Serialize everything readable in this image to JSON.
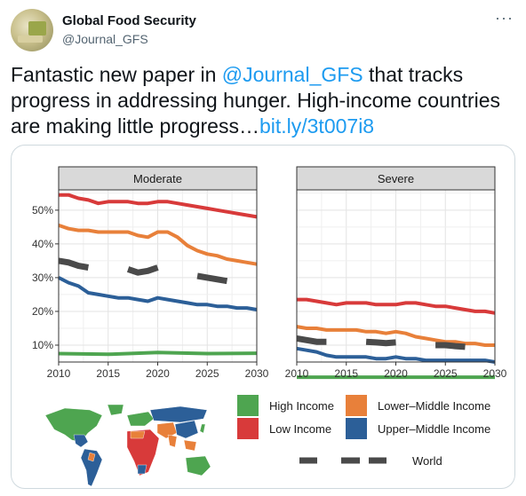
{
  "account": {
    "name": "Global Food Security",
    "handle": "@Journal_GFS",
    "more_icon": "more-dots-icon"
  },
  "tweet": {
    "text_before": "Fantastic new paper in ",
    "mention": "@Journal_GFS",
    "text_after": " that tracks progress in addressing hunger. High-income countries are making little progress…",
    "link": "bit.ly/3t007i8"
  },
  "chart_data": {
    "type": "line",
    "panels": [
      "Moderate",
      "Severe"
    ],
    "x_ticks": [
      "2010",
      "2015",
      "2020",
      "2025",
      "2030"
    ],
    "xlim": [
      2010,
      2030
    ],
    "y_ticks": [
      "10%",
      "20%",
      "30%",
      "40%",
      "50%"
    ],
    "ylim": [
      5,
      56
    ],
    "grid": true,
    "legend": {
      "placement": "bottom-right",
      "entries": [
        "High Income",
        "Lower–Middle Income",
        "Low Income",
        "Upper–Middle Income",
        "World"
      ]
    },
    "colors": {
      "High Income": "#4ea550",
      "Lower–Middle Income": "#e8803a",
      "Low Income": "#d83a3a",
      "Upper–Middle Income": "#2c5f98",
      "World": "#4a4a4a"
    },
    "series": {
      "Moderate": [
        {
          "name": "Low Income",
          "x": [
            2010,
            2011,
            2012,
            2013,
            2014,
            2015,
            2016,
            2017,
            2018,
            2019,
            2020,
            2021,
            2022,
            2023,
            2024,
            2025,
            2026,
            2027,
            2028,
            2029,
            2030
          ],
          "values": [
            54.5,
            54.5,
            53.5,
            53,
            52,
            52.5,
            52.5,
            52.5,
            52,
            52,
            52.5,
            52.5,
            52,
            51.5,
            51,
            50.5,
            50,
            49.5,
            49,
            48.5,
            48
          ]
        },
        {
          "name": "Lower–Middle Income",
          "x": [
            2010,
            2011,
            2012,
            2013,
            2014,
            2015,
            2016,
            2017,
            2018,
            2019,
            2020,
            2021,
            2022,
            2023,
            2024,
            2025,
            2026,
            2027,
            2028,
            2029,
            2030
          ],
          "values": [
            45.5,
            44.5,
            44,
            44,
            43.5,
            43.5,
            43.5,
            43.5,
            42.5,
            42,
            43.5,
            43.5,
            42,
            39.5,
            38,
            37,
            36.5,
            35.5,
            35,
            34.5,
            34
          ]
        },
        {
          "name": "Upper–Middle Income",
          "x": [
            2010,
            2011,
            2012,
            2013,
            2014,
            2015,
            2016,
            2017,
            2018,
            2019,
            2020,
            2021,
            2022,
            2023,
            2024,
            2025,
            2026,
            2027,
            2028,
            2029,
            2030
          ],
          "values": [
            30,
            28.5,
            27.5,
            25.5,
            25,
            24.5,
            24,
            24,
            23.5,
            23,
            24,
            23.5,
            23,
            22.5,
            22,
            22,
            21.5,
            21.5,
            21,
            21,
            20.5
          ]
        },
        {
          "name": "High Income",
          "x": [
            2010,
            2015,
            2020,
            2025,
            2030
          ],
          "values": [
            7.5,
            7.3,
            7.8,
            7.5,
            7.6
          ]
        },
        {
          "name": "World",
          "x": [
            2010,
            2011,
            2012,
            2013,
            2014,
            2015,
            2016,
            2017,
            2018,
            2019,
            2020,
            2021,
            2022,
            2023,
            2024,
            2025,
            2026,
            2027,
            2028,
            2029,
            2030
          ],
          "values": [
            35,
            34.5,
            33.5,
            33,
            null,
            null,
            null,
            32.5,
            31.5,
            32,
            33,
            null,
            null,
            null,
            30.5,
            30,
            29.5,
            29,
            null,
            null,
            null
          ]
        }
      ],
      "Severe": [
        {
          "name": "Low Income",
          "x": [
            2010,
            2011,
            2012,
            2013,
            2014,
            2015,
            2016,
            2017,
            2018,
            2019,
            2020,
            2021,
            2022,
            2023,
            2024,
            2025,
            2026,
            2027,
            2028,
            2029,
            2030
          ],
          "values": [
            23.5,
            23.5,
            23,
            22.5,
            22,
            22.5,
            22.5,
            22.5,
            22,
            22,
            22,
            22.5,
            22.5,
            22,
            21.5,
            21.5,
            21,
            20.5,
            20,
            20,
            19.5
          ]
        },
        {
          "name": "Lower–Middle Income",
          "x": [
            2010,
            2011,
            2012,
            2013,
            2014,
            2015,
            2016,
            2017,
            2018,
            2019,
            2020,
            2021,
            2022,
            2023,
            2024,
            2025,
            2026,
            2027,
            2028,
            2029,
            2030
          ],
          "values": [
            15.5,
            15,
            15,
            14.5,
            14.5,
            14.5,
            14.5,
            14,
            14,
            13.5,
            14,
            13.5,
            12.5,
            12,
            11.5,
            11,
            11,
            10.5,
            10.5,
            10,
            10
          ]
        },
        {
          "name": "Upper–Middle Income",
          "x": [
            2010,
            2011,
            2012,
            2013,
            2014,
            2015,
            2016,
            2017,
            2018,
            2019,
            2020,
            2021,
            2022,
            2023,
            2024,
            2025,
            2026,
            2027,
            2028,
            2029,
            2030
          ],
          "values": [
            9,
            8.5,
            8,
            7,
            6.5,
            6.5,
            6.5,
            6.5,
            6,
            6,
            6.5,
            6,
            6,
            5.5,
            5.5,
            5.5,
            5.5,
            5.5,
            5.5,
            5.5,
            5
          ]
        },
        {
          "name": "High Income",
          "x": [
            2010,
            2030
          ],
          "values": [
            0.5,
            0.5
          ]
        },
        {
          "name": "World",
          "x": [
            2010,
            2011,
            2012,
            2013,
            2014,
            2015,
            2016,
            2017,
            2018,
            2019,
            2020,
            2021,
            2022,
            2023,
            2024,
            2025,
            2026,
            2027,
            2028,
            2029,
            2030
          ],
          "values": [
            12,
            11.5,
            11,
            11,
            null,
            null,
            null,
            11,
            10.8,
            10.6,
            10.8,
            null,
            null,
            null,
            10,
            10,
            9.7,
            9.5,
            null,
            null,
            null
          ]
        }
      ]
    }
  },
  "map": {
    "colors": [
      "#4ea550",
      "#e8803a",
      "#d83a3a",
      "#2c5f98"
    ]
  }
}
